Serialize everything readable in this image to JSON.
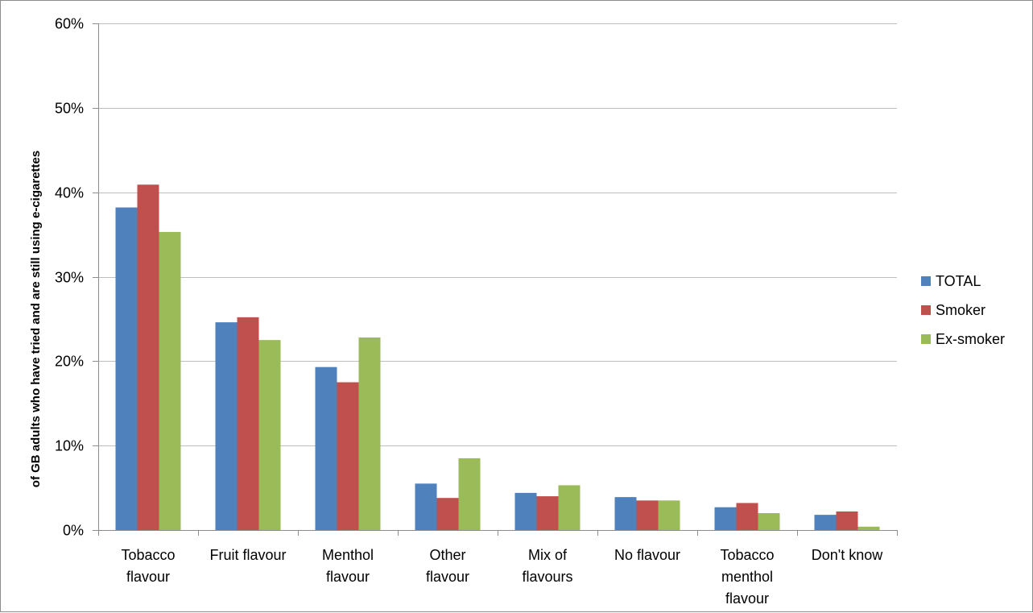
{
  "chart_data": {
    "type": "bar",
    "title": "",
    "xlabel": "",
    "ylabel": "of GB adults who  have tried and are still using e-cigarettes",
    "ylim": [
      0,
      60
    ],
    "y_ticks": [
      0,
      10,
      20,
      30,
      40,
      50,
      60
    ],
    "y_tick_labels": [
      "0%",
      "10%",
      "20%",
      "30%",
      "40%",
      "50%",
      "60%"
    ],
    "grid": true,
    "legend_position": "right",
    "categories": [
      [
        "Tobacco",
        "flavour"
      ],
      [
        "Fruit flavour"
      ],
      [
        "Menthol",
        "flavour"
      ],
      [
        "Other",
        "flavour"
      ],
      [
        "Mix of",
        "flavours"
      ],
      [
        "No flavour"
      ],
      [
        "Tobacco",
        "menthol",
        "flavour"
      ],
      [
        "Don't know"
      ]
    ],
    "series": [
      {
        "name": "TOTAL",
        "color": "#4F81BD",
        "values": [
          38.2,
          24.6,
          19.3,
          5.5,
          4.4,
          3.9,
          2.7,
          1.8
        ]
      },
      {
        "name": "Smoker",
        "color": "#C0504D",
        "values": [
          40.9,
          25.2,
          17.5,
          3.8,
          4.0,
          3.5,
          3.2,
          2.2
        ]
      },
      {
        "name": "Ex-smoker",
        "color": "#9BBB59",
        "values": [
          35.3,
          22.5,
          22.8,
          8.5,
          5.3,
          3.5,
          2.0,
          0.4
        ]
      }
    ]
  }
}
